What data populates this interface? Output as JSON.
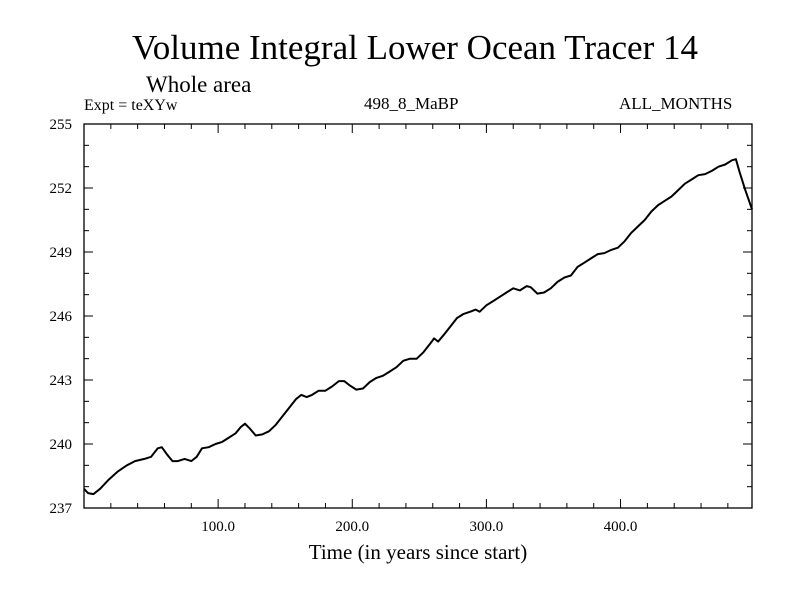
{
  "chart_data": {
    "type": "line",
    "title": "Volume Integral Lower Ocean Tracer 14",
    "subtitle": "Whole area",
    "expt_label": "Expt = teXYw",
    "run_label": "498_8_MaBP",
    "months_label": "ALL_MONTHS",
    "xlabel": "Time (in years since start)",
    "ylabel": "",
    "xlim": [
      0,
      498
    ],
    "ylim": [
      237,
      255
    ],
    "x_ticks": [
      100,
      200,
      300,
      400
    ],
    "x_tick_labels": [
      "100.0",
      "200.0",
      "300.0",
      "400.0"
    ],
    "y_ticks": [
      237,
      240,
      243,
      246,
      249,
      252,
      255
    ],
    "y_tick_labels": [
      "237",
      "240",
      "243",
      "246",
      "249",
      "252",
      "255"
    ],
    "grid": false,
    "series": [
      {
        "color": "#000000",
        "points": [
          [
            0,
            237.9
          ],
          [
            3,
            237.7
          ],
          [
            7,
            237.65
          ],
          [
            12,
            237.9
          ],
          [
            18,
            238.3
          ],
          [
            25,
            238.7
          ],
          [
            32,
            239.0
          ],
          [
            38,
            239.2
          ],
          [
            45,
            239.3
          ],
          [
            50,
            239.4
          ],
          [
            55,
            239.8
          ],
          [
            58,
            239.85
          ],
          [
            62,
            239.5
          ],
          [
            66,
            239.2
          ],
          [
            70,
            239.2
          ],
          [
            75,
            239.3
          ],
          [
            80,
            239.2
          ],
          [
            84,
            239.4
          ],
          [
            88,
            239.8
          ],
          [
            93,
            239.85
          ],
          [
            98,
            240.0
          ],
          [
            103,
            240.1
          ],
          [
            108,
            240.3
          ],
          [
            113,
            240.5
          ],
          [
            117,
            240.8
          ],
          [
            120,
            240.95
          ],
          [
            124,
            240.7
          ],
          [
            128,
            240.4
          ],
          [
            133,
            240.45
          ],
          [
            138,
            240.6
          ],
          [
            143,
            240.9
          ],
          [
            148,
            241.3
          ],
          [
            153,
            241.7
          ],
          [
            158,
            242.1
          ],
          [
            162,
            242.3
          ],
          [
            166,
            242.2
          ],
          [
            170,
            242.3
          ],
          [
            175,
            242.5
          ],
          [
            180,
            242.5
          ],
          [
            185,
            242.7
          ],
          [
            190,
            242.95
          ],
          [
            194,
            242.95
          ],
          [
            198,
            242.75
          ],
          [
            203,
            242.55
          ],
          [
            208,
            242.6
          ],
          [
            213,
            242.9
          ],
          [
            218,
            243.1
          ],
          [
            223,
            243.2
          ],
          [
            228,
            243.4
          ],
          [
            233,
            243.6
          ],
          [
            238,
            243.9
          ],
          [
            243,
            244.0
          ],
          [
            248,
            244.0
          ],
          [
            253,
            244.3
          ],
          [
            258,
            244.7
          ],
          [
            261,
            244.95
          ],
          [
            264,
            244.8
          ],
          [
            268,
            245.1
          ],
          [
            273,
            245.5
          ],
          [
            278,
            245.9
          ],
          [
            283,
            246.1
          ],
          [
            288,
            246.2
          ],
          [
            292,
            246.3
          ],
          [
            295,
            246.2
          ],
          [
            300,
            246.5
          ],
          [
            305,
            246.7
          ],
          [
            310,
            246.9
          ],
          [
            315,
            247.1
          ],
          [
            320,
            247.3
          ],
          [
            325,
            247.2
          ],
          [
            330,
            247.4
          ],
          [
            333,
            247.35
          ],
          [
            338,
            247.05
          ],
          [
            343,
            247.1
          ],
          [
            348,
            247.3
          ],
          [
            353,
            247.6
          ],
          [
            358,
            247.8
          ],
          [
            363,
            247.9
          ],
          [
            368,
            248.3
          ],
          [
            373,
            248.5
          ],
          [
            378,
            248.7
          ],
          [
            383,
            248.9
          ],
          [
            388,
            248.95
          ],
          [
            393,
            249.1
          ],
          [
            398,
            249.2
          ],
          [
            403,
            249.5
          ],
          [
            408,
            249.9
          ],
          [
            413,
            250.2
          ],
          [
            418,
            250.5
          ],
          [
            423,
            250.9
          ],
          [
            428,
            251.2
          ],
          [
            433,
            251.4
          ],
          [
            438,
            251.6
          ],
          [
            443,
            251.9
          ],
          [
            448,
            252.2
          ],
          [
            453,
            252.4
          ],
          [
            458,
            252.6
          ],
          [
            463,
            252.65
          ],
          [
            468,
            252.8
          ],
          [
            473,
            253.0
          ],
          [
            478,
            253.1
          ],
          [
            483,
            253.3
          ],
          [
            486,
            253.35
          ],
          [
            489,
            252.7
          ],
          [
            493,
            251.9
          ],
          [
            498,
            251.0
          ]
        ]
      }
    ]
  }
}
